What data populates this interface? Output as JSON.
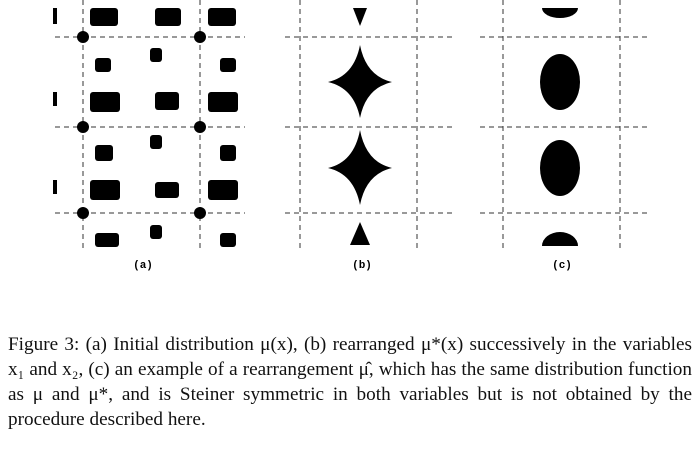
{
  "figure": {
    "panels": [
      {
        "label": "(a)"
      },
      {
        "label": "(b)"
      },
      {
        "label": "(c)"
      }
    ],
    "caption": "Figure 3: (a) Initial distribution μ(x), (b) rearranged μ*(x) successively in the variables x₁ and x₂, (c) an example of a rearrangement μ̂, which has the same distribution function as μ and μ*, and is Steiner symmetric in both variables but is not obtained by the procedure described here."
  }
}
